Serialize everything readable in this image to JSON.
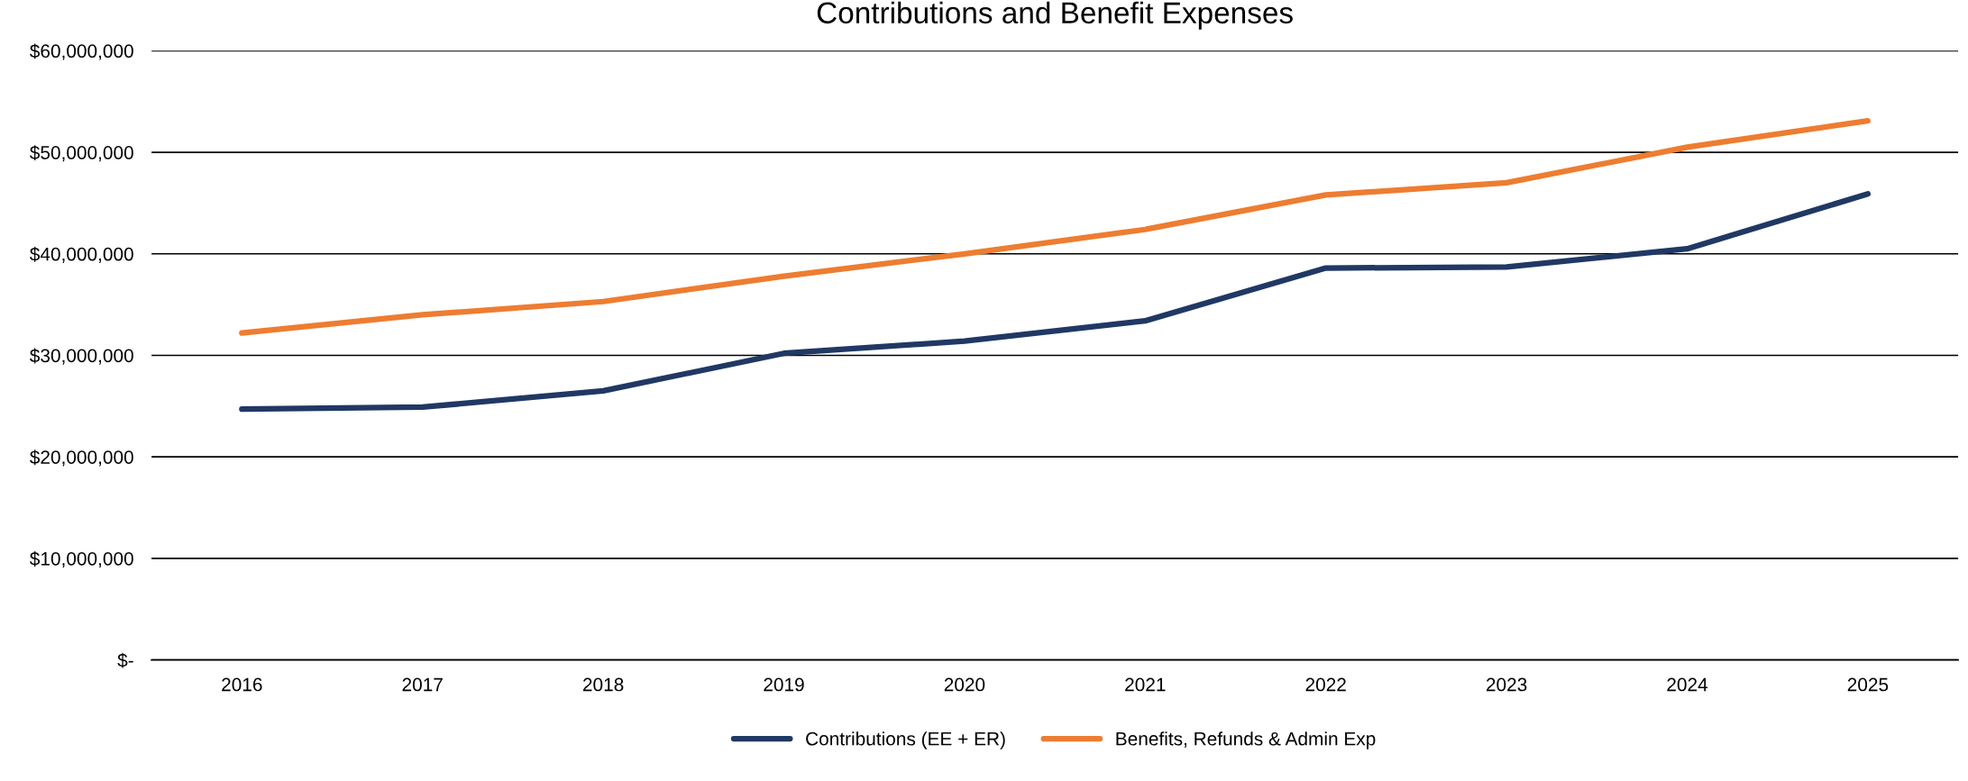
{
  "chart_data": {
    "type": "line",
    "title": "Contributions and Benefit Expenses",
    "categories": [
      "2016",
      "2017",
      "2018",
      "2019",
      "2020",
      "2021",
      "2022",
      "2023",
      "2024",
      "2025"
    ],
    "series": [
      {
        "name": "Contributions (EE + ER)",
        "color": "#203864",
        "values": [
          24700000,
          24900000,
          26500000,
          30200000,
          31400000,
          33400000,
          38600000,
          38700000,
          40500000,
          45900000
        ]
      },
      {
        "name": "Benefits, Refunds & Admin Exp",
        "color": "#ed7d31",
        "values": [
          32200000,
          34000000,
          35300000,
          37800000,
          40000000,
          42400000,
          45800000,
          47000000,
          50500000,
          53100000
        ]
      }
    ],
    "ylim": [
      0,
      60000000
    ],
    "yticks": [
      {
        "value": 0,
        "label": "$-"
      },
      {
        "value": 10000000,
        "label": "$10,000,000"
      },
      {
        "value": 20000000,
        "label": "$20,000,000"
      },
      {
        "value": 30000000,
        "label": "$30,000,000"
      },
      {
        "value": 40000000,
        "label": "$40,000,000"
      },
      {
        "value": 50000000,
        "label": "$50,000,000"
      },
      {
        "value": 60000000,
        "label": "$60,000,000"
      }
    ],
    "grid": "y",
    "legend": "bottom",
    "marker": "none",
    "line_style": "solid"
  }
}
